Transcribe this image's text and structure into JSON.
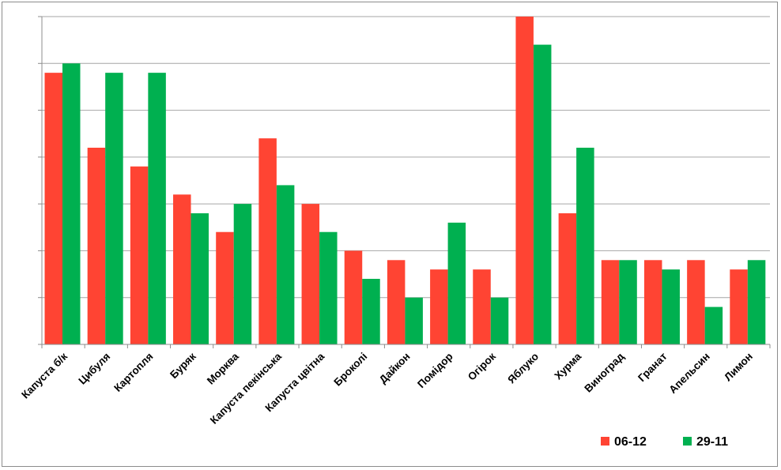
{
  "chart_data": {
    "type": "bar",
    "title": "",
    "xlabel": "",
    "ylabel": "",
    "y_tick_labels_shown": false,
    "grid": "horizontal",
    "legend_position": "bottom-right",
    "ylim": [
      0,
      35
    ],
    "categories": [
      "Капуста б/к",
      "Цибуля",
      "Картопля",
      "Буряк",
      "Морква",
      "Капуста пекінська",
      "Капуста цвітна",
      "Броколі",
      "Дайкон",
      "Помідор",
      "Огірок",
      "Яблуко",
      "Хурма",
      "Виноград",
      "Гранат",
      "Апельсин",
      "Лимон"
    ],
    "series": [
      {
        "name": "06-12",
        "color": "#ff4433",
        "values": [
          29,
          21,
          19,
          16,
          12,
          22,
          15,
          10,
          9,
          8,
          8,
          35,
          14,
          9,
          9,
          9,
          8
        ]
      },
      {
        "name": "29-11",
        "color": "#00b050",
        "values": [
          30,
          29,
          29,
          14,
          15,
          17,
          12,
          7,
          5,
          13,
          5,
          32,
          21,
          9,
          8,
          4,
          9
        ]
      }
    ]
  }
}
